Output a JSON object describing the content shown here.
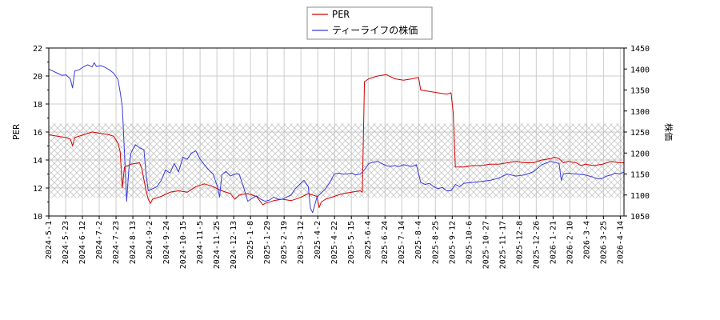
{
  "chart_data": {
    "type": "line",
    "title": "",
    "xlabel": "",
    "ylabel": "PER",
    "ylabel_right": "株価",
    "x_ticks": [
      "2024-5-1",
      "2024-5-23",
      "2024-6-12",
      "2024-7-2",
      "2024-7-23",
      "2024-8-13",
      "2024-9-2",
      "2024-9-24",
      "2024-10-15",
      "2024-11-5",
      "2024-11-25",
      "2024-12-13",
      "2025-1-8",
      "2025-1-29",
      "2025-2-19",
      "2025-3-12",
      "2025-4-2",
      "2025-4-22",
      "2025-5-15",
      "2025-6-4",
      "2025-6-24",
      "2025-7-14",
      "2025-8-4",
      "2025-8-25",
      "2025-9-12",
      "2025-10-6",
      "2025-10-27",
      "2025-11-17",
      "2025-12-8",
      "2025-12-26",
      "2026-1-21",
      "2026-2-10",
      "2026-3-4",
      "2026-3-25",
      "2026-4-14"
    ],
    "ylim_left": [
      10,
      22
    ],
    "yticks_left": [
      10,
      12,
      14,
      16,
      18,
      20,
      22
    ],
    "ylim_right": [
      1050,
      1450
    ],
    "yticks_right": [
      1050,
      1100,
      1150,
      1200,
      1250,
      1300,
      1350,
      1400,
      1450
    ],
    "grid": true,
    "hatch_band_left": [
      11.3,
      16.6
    ],
    "legend_position": "top-center",
    "series": [
      {
        "name": "PER",
        "axis": "left",
        "color": "#d40000",
        "points": [
          [
            0,
            15.8
          ],
          [
            4,
            15.7
          ],
          [
            8,
            15.6
          ],
          [
            10,
            15.5
          ],
          [
            11,
            15.0
          ],
          [
            12,
            15.6
          ],
          [
            16,
            15.8
          ],
          [
            20,
            16.0
          ],
          [
            24,
            15.9
          ],
          [
            28,
            15.8
          ],
          [
            30,
            15.7
          ],
          [
            32,
            15.2
          ],
          [
            33,
            14.6
          ],
          [
            34,
            12.0
          ],
          [
            35,
            13.5
          ],
          [
            38,
            13.7
          ],
          [
            42,
            13.8
          ],
          [
            43,
            13.4
          ],
          [
            45,
            11.8
          ],
          [
            46,
            11.2
          ],
          [
            47,
            10.9
          ],
          [
            48,
            11.2
          ],
          [
            52,
            11.4
          ],
          [
            56,
            11.7
          ],
          [
            60,
            11.8
          ],
          [
            64,
            11.7
          ],
          [
            68,
            12.1
          ],
          [
            72,
            12.3
          ],
          [
            76,
            12.1
          ],
          [
            80,
            11.8
          ],
          [
            84,
            11.6
          ],
          [
            86,
            11.2
          ],
          [
            88,
            11.5
          ],
          [
            92,
            11.6
          ],
          [
            96,
            11.4
          ],
          [
            99,
            10.8
          ],
          [
            100,
            10.9
          ],
          [
            104,
            11.1
          ],
          [
            108,
            11.2
          ],
          [
            112,
            11.1
          ],
          [
            116,
            11.3
          ],
          [
            120,
            11.6
          ],
          [
            124,
            11.4
          ],
          [
            125,
            10.6
          ],
          [
            126,
            11.0
          ],
          [
            128,
            11.2
          ],
          [
            132,
            11.4
          ],
          [
            136,
            11.6
          ],
          [
            140,
            11.7
          ],
          [
            144,
            11.8
          ],
          [
            145,
            11.7
          ],
          [
            146,
            19.6
          ],
          [
            148,
            19.8
          ],
          [
            152,
            20.0
          ],
          [
            156,
            20.1
          ],
          [
            160,
            19.8
          ],
          [
            164,
            19.7
          ],
          [
            168,
            19.8
          ],
          [
            171,
            19.9
          ],
          [
            172,
            19.0
          ],
          [
            176,
            18.9
          ],
          [
            180,
            18.8
          ],
          [
            184,
            18.7
          ],
          [
            186,
            18.8
          ],
          [
            187,
            17.4
          ],
          [
            188,
            13.5
          ],
          [
            192,
            13.5
          ],
          [
            196,
            13.6
          ],
          [
            200,
            13.6
          ],
          [
            204,
            13.7
          ],
          [
            208,
            13.7
          ],
          [
            212,
            13.8
          ],
          [
            216,
            13.9
          ],
          [
            220,
            13.8
          ],
          [
            224,
            13.8
          ],
          [
            228,
            14.0
          ],
          [
            232,
            14.1
          ],
          [
            234,
            14.2
          ],
          [
            236,
            14.1
          ],
          [
            238,
            13.8
          ],
          [
            240,
            13.9
          ],
          [
            244,
            13.8
          ],
          [
            246,
            13.6
          ],
          [
            248,
            13.7
          ],
          [
            252,
            13.6
          ],
          [
            256,
            13.7
          ],
          [
            260,
            13.9
          ],
          [
            264,
            13.8
          ],
          [
            266,
            13.8
          ]
        ]
      },
      {
        "name": "ティーライフの株価",
        "axis": "right",
        "color": "#3a3adc",
        "points": [
          [
            0,
            1400
          ],
          [
            2,
            1395
          ],
          [
            4,
            1390
          ],
          [
            6,
            1385
          ],
          [
            8,
            1386
          ],
          [
            10,
            1376
          ],
          [
            11,
            1355
          ],
          [
            12,
            1395
          ],
          [
            14,
            1398
          ],
          [
            16,
            1405
          ],
          [
            18,
            1410
          ],
          [
            20,
            1405
          ],
          [
            21,
            1415
          ],
          [
            22,
            1406
          ],
          [
            24,
            1408
          ],
          [
            26,
            1404
          ],
          [
            28,
            1398
          ],
          [
            30,
            1390
          ],
          [
            32,
            1375
          ],
          [
            33,
            1345
          ],
          [
            34,
            1310
          ],
          [
            35,
            1200
          ],
          [
            36,
            1085
          ],
          [
            37,
            1160
          ],
          [
            38,
            1200
          ],
          [
            40,
            1220
          ],
          [
            42,
            1212
          ],
          [
            44,
            1208
          ],
          [
            45,
            1150
          ],
          [
            46,
            1110
          ],
          [
            48,
            1115
          ],
          [
            50,
            1120
          ],
          [
            52,
            1135
          ],
          [
            54,
            1160
          ],
          [
            56,
            1152
          ],
          [
            58,
            1175
          ],
          [
            60,
            1155
          ],
          [
            62,
            1190
          ],
          [
            64,
            1185
          ],
          [
            66,
            1200
          ],
          [
            68,
            1205
          ],
          [
            70,
            1185
          ],
          [
            72,
            1172
          ],
          [
            74,
            1160
          ],
          [
            76,
            1150
          ],
          [
            78,
            1120
          ],
          [
            79,
            1095
          ],
          [
            80,
            1148
          ],
          [
            82,
            1156
          ],
          [
            84,
            1145
          ],
          [
            86,
            1150
          ],
          [
            88,
            1150
          ],
          [
            90,
            1120
          ],
          [
            92,
            1085
          ],
          [
            94,
            1092
          ],
          [
            96,
            1098
          ],
          [
            98,
            1090
          ],
          [
            100,
            1085
          ],
          [
            102,
            1088
          ],
          [
            104,
            1095
          ],
          [
            106,
            1090
          ],
          [
            108,
            1090
          ],
          [
            110,
            1095
          ],
          [
            112,
            1100
          ],
          [
            114,
            1115
          ],
          [
            116,
            1125
          ],
          [
            118,
            1135
          ],
          [
            120,
            1120
          ],
          [
            121,
            1068
          ],
          [
            122,
            1058
          ],
          [
            124,
            1095
          ],
          [
            126,
            1105
          ],
          [
            128,
            1115
          ],
          [
            130,
            1130
          ],
          [
            132,
            1150
          ],
          [
            134,
            1152
          ],
          [
            136,
            1150
          ],
          [
            138,
            1150
          ],
          [
            140,
            1152
          ],
          [
            142,
            1148
          ],
          [
            144,
            1150
          ],
          [
            146,
            1160
          ],
          [
            148,
            1175
          ],
          [
            150,
            1178
          ],
          [
            152,
            1180
          ],
          [
            154,
            1175
          ],
          [
            156,
            1170
          ],
          [
            158,
            1168
          ],
          [
            160,
            1170
          ],
          [
            162,
            1168
          ],
          [
            164,
            1172
          ],
          [
            166,
            1170
          ],
          [
            168,
            1168
          ],
          [
            170,
            1172
          ],
          [
            172,
            1130
          ],
          [
            174,
            1125
          ],
          [
            176,
            1128
          ],
          [
            178,
            1120
          ],
          [
            180,
            1115
          ],
          [
            182,
            1118
          ],
          [
            184,
            1110
          ],
          [
            186,
            1110
          ],
          [
            188,
            1125
          ],
          [
            190,
            1120
          ],
          [
            192,
            1128
          ],
          [
            196,
            1130
          ],
          [
            200,
            1132
          ],
          [
            204,
            1135
          ],
          [
            208,
            1140
          ],
          [
            212,
            1150
          ],
          [
            216,
            1145
          ],
          [
            220,
            1148
          ],
          [
            224,
            1155
          ],
          [
            228,
            1172
          ],
          [
            232,
            1180
          ],
          [
            236,
            1175
          ],
          [
            237,
            1135
          ],
          [
            238,
            1150
          ],
          [
            240,
            1152
          ],
          [
            244,
            1150
          ],
          [
            248,
            1148
          ],
          [
            250,
            1145
          ],
          [
            252,
            1142
          ],
          [
            254,
            1138
          ],
          [
            256,
            1140
          ],
          [
            258,
            1145
          ],
          [
            260,
            1148
          ],
          [
            262,
            1152
          ],
          [
            264,
            1150
          ],
          [
            266,
            1155
          ]
        ]
      }
    ]
  }
}
